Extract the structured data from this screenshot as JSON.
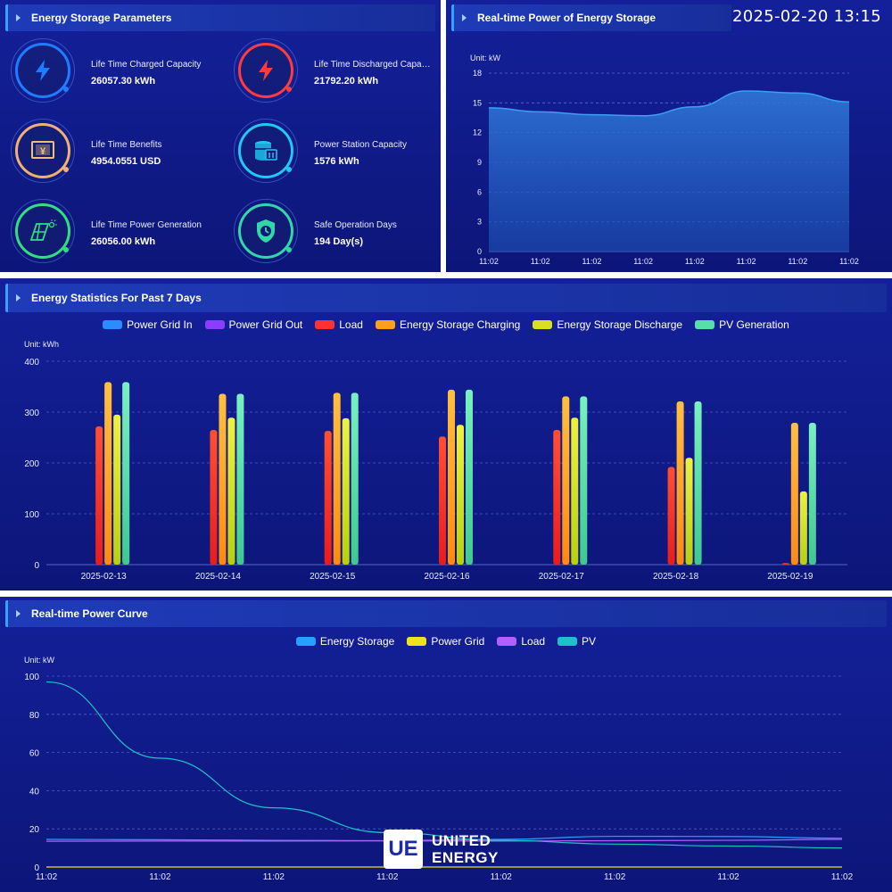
{
  "params_panel": {
    "title": "Energy Storage Parameters",
    "items": [
      {
        "label": "Life Time Charged Capacity",
        "value": "26057.30 kWh",
        "icon": "lightning-icon",
        "color": "#1e7dff"
      },
      {
        "label": "Life Time Discharged Capacity",
        "value": "21792.20 kWh",
        "icon": "lightning-icon",
        "color": "#ff3b3b"
      },
      {
        "label": "Life Time Benefits",
        "value": "4954.0551 USD",
        "icon": "money-icon",
        "color": "#f0b070"
      },
      {
        "label": "Power Station Capacity",
        "value": "1576 kWh",
        "icon": "battery-storage-icon",
        "color": "#22c8f0"
      },
      {
        "label": "Life Time Power Generation",
        "value": "26056.00 kWh",
        "icon": "solar-panel-icon",
        "color": "#30e080"
      },
      {
        "label": "Safe Operation Days",
        "value": "194 Day(s)",
        "icon": "shield-clock-icon",
        "color": "#30d8a8"
      }
    ]
  },
  "realtime_storage": {
    "title": "Real-time Power of Energy Storage",
    "datetime": "2025-02-20 13:15",
    "unit_label": "Unit:  kW"
  },
  "weekly": {
    "title": "Energy Statistics For Past 7 Days",
    "unit_label": "Unit:  kWh"
  },
  "curve": {
    "title": "Real-time Power Curve",
    "unit_label": "Unit:  kW"
  },
  "logo": {
    "mark": "UE",
    "line1": "UNITED",
    "line2": "ENERGY"
  },
  "chart_data": [
    {
      "type": "area",
      "title": "Real-time Power of Energy Storage",
      "ylabel": "kW",
      "x": [
        "11:02",
        "11:02",
        "11:02",
        "11:02",
        "11:02",
        "11:02",
        "11:02",
        "11:02"
      ],
      "series": [
        {
          "values": [
            14.5,
            14.1,
            13.8,
            13.7,
            14.6,
            16.2,
            16.0,
            15.1
          ]
        }
      ],
      "ylim": [
        0,
        18
      ],
      "yticks": [
        0,
        3,
        6,
        9,
        12,
        15,
        18
      ],
      "grid": true
    },
    {
      "type": "bar",
      "title": "Energy Statistics For Past 7 Days",
      "ylabel": "kWh",
      "categories": [
        "2025-02-13",
        "2025-02-14",
        "2025-02-15",
        "2025-02-16",
        "2025-02-17",
        "2025-02-18",
        "2025-02-19"
      ],
      "series": [
        {
          "name": "Power Grid In",
          "color": "#2a8cff",
          "values": [
            0,
            0,
            0,
            0,
            0,
            0,
            0
          ]
        },
        {
          "name": "Power Grid Out",
          "color": "#8a3cff",
          "values": [
            0,
            0,
            0,
            0,
            0,
            0,
            0
          ]
        },
        {
          "name": "Load",
          "color": "#ff3030",
          "values": [
            272,
            265,
            263,
            252,
            265,
            192,
            3
          ]
        },
        {
          "name": "Energy Storage Charging",
          "color": "#ff9f1a",
          "values": [
            359,
            336,
            338,
            344,
            331,
            321,
            279
          ]
        },
        {
          "name": "Energy Storage Discharge",
          "color": "#d8e020",
          "values": [
            295,
            289,
            288,
            275,
            289,
            210,
            144
          ]
        },
        {
          "name": "PV Generation",
          "color": "#56e0a8",
          "values": [
            359,
            336,
            338,
            344,
            331,
            321,
            279
          ]
        }
      ],
      "ylim": [
        0,
        400
      ],
      "yticks": [
        0,
        100,
        200,
        300,
        400
      ],
      "grid": true,
      "legend_position": "top"
    },
    {
      "type": "line",
      "title": "Real-time Power Curve",
      "ylabel": "kW",
      "x": [
        "11:02",
        "11:02",
        "11:02",
        "11:02",
        "11:02",
        "11:02",
        "11:02",
        "11:02"
      ],
      "series": [
        {
          "name": "Energy Storage",
          "color": "#28a0ff",
          "values": [
            14.5,
            14.3,
            14.0,
            13.8,
            14.5,
            16.1,
            16.0,
            15.1
          ]
        },
        {
          "name": "Power Grid",
          "color": "#f0e020",
          "values": [
            0,
            0,
            0,
            0,
            0,
            0,
            0,
            0
          ]
        },
        {
          "name": "Load",
          "color": "#b060ff",
          "values": [
            13.5,
            13.6,
            13.6,
            13.7,
            13.6,
            13.8,
            14.0,
            14.5
          ]
        },
        {
          "name": "PV",
          "color": "#20c0c8",
          "values": [
            97,
            57,
            31,
            18,
            14,
            12,
            11,
            10
          ]
        }
      ],
      "ylim": [
        0,
        100
      ],
      "yticks": [
        0,
        20,
        40,
        60,
        80,
        100
      ],
      "grid": true,
      "legend_position": "top"
    }
  ]
}
